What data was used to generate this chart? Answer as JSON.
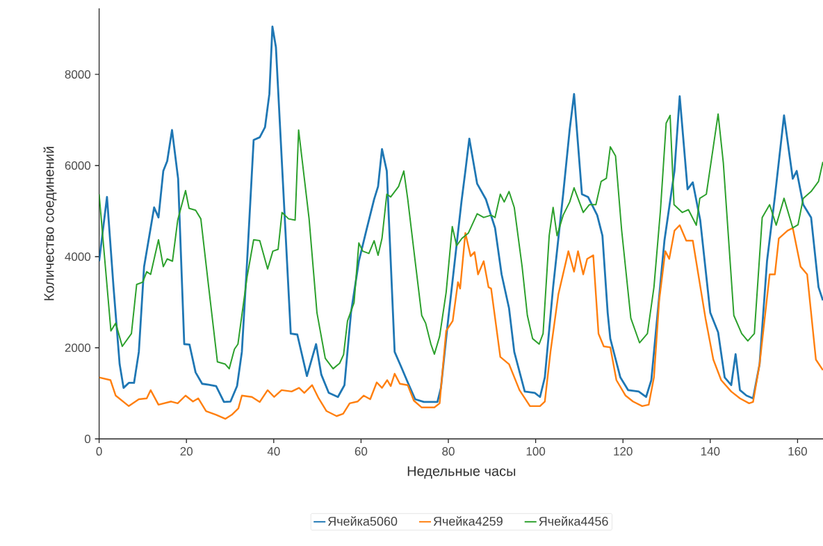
{
  "chart_data": {
    "type": "line",
    "xlabel": "Недельные часы",
    "ylabel": "Количество соединений",
    "xlim": [
      0,
      166
    ],
    "ylim": [
      0,
      9450
    ],
    "xticks": [
      0,
      20,
      40,
      60,
      80,
      100,
      120,
      140,
      160
    ],
    "yticks": [
      0,
      2000,
      4000,
      6000,
      8000
    ],
    "legend": "bottom",
    "marker": "none",
    "line_style": "solid",
    "series": [
      {
        "name": "Ячейка5060",
        "color": "#1f77b4",
        "x": [
          0,
          1.8,
          3.3,
          4.7,
          5.6,
          6.8,
          8,
          9.1,
          10.3,
          12.6,
          13.6,
          14.7,
          15.6,
          16.7,
          18.1,
          19.5,
          20.7,
          22.1,
          23.6,
          25.1,
          26.8,
          28.6,
          30.1,
          31.6,
          32.7,
          33.9,
          35.4,
          36.8,
          38,
          39,
          39.7,
          40.5,
          43.9,
          45.4,
          47.6,
          49.7,
          50.9,
          52.6,
          54.7,
          56.2,
          57.7,
          59.5,
          61.2,
          63,
          63.9,
          64.8,
          65.9,
          67.7,
          69.2,
          70.7,
          72.4,
          74.4,
          77.5,
          78.3,
          79.8,
          81.6,
          83,
          83.9,
          84.8,
          86.6,
          88.6,
          90.7,
          92.2,
          93.9,
          95.1,
          97.5,
          99.8,
          101,
          102.1,
          104,
          106.3,
          107.8,
          108.8,
          110.6,
          112,
          114.1,
          115.3,
          116.5,
          117.1,
          119.4,
          121.2,
          123.6,
          125.3,
          126.5,
          129.5,
          131.8,
          133,
          134.8,
          136,
          137.7,
          140,
          141.8,
          143.3,
          144.8,
          145.8,
          146.8,
          148.3,
          149.8,
          151.3,
          153,
          154.8,
          156.9,
          158.9,
          159.8,
          161.3,
          163.1,
          164.8,
          165.8
        ],
        "values": [
          3900,
          5310,
          3330,
          1640,
          1120,
          1230,
          1230,
          1910,
          3780,
          5080,
          4860,
          5880,
          6100,
          6780,
          5710,
          2080,
          2070,
          1460,
          1210,
          1190,
          1160,
          810,
          820,
          1160,
          1910,
          3900,
          6560,
          6620,
          6840,
          7570,
          9050,
          8600,
          2310,
          2290,
          1380,
          2080,
          1410,
          1010,
          920,
          1180,
          2770,
          3900,
          4570,
          5260,
          5540,
          6360,
          5880,
          1910,
          1580,
          1240,
          870,
          810,
          810,
          1120,
          2480,
          4010,
          5200,
          5880,
          6590,
          5600,
          5260,
          4630,
          3610,
          2870,
          1910,
          1040,
          1010,
          920,
          1350,
          3330,
          5370,
          6790,
          7570,
          5370,
          5310,
          4910,
          4460,
          2770,
          2200,
          1350,
          1070,
          1040,
          920,
          1290,
          4350,
          5880,
          7520,
          5480,
          5630,
          4800,
          2770,
          2340,
          1350,
          1180,
          1860,
          1070,
          950,
          890,
          1640,
          3900,
          5310,
          7100,
          5710,
          5880,
          5140,
          4860,
          3330,
          3040
        ]
      },
      {
        "name": "Ячейка4259",
        "color": "#ff7f0e",
        "x": [
          0,
          2.6,
          3.8,
          6.8,
          9.1,
          10.9,
          11.8,
          13.6,
          16.5,
          18,
          19.8,
          21.5,
          22.7,
          24.5,
          26.8,
          28.9,
          30.4,
          31.9,
          32.7,
          35,
          36.8,
          38.6,
          40.1,
          41.8,
          44.1,
          45.8,
          47,
          48.8,
          50.3,
          52.1,
          54.4,
          55.9,
          57.4,
          59.2,
          60.6,
          62.1,
          63.6,
          64.8,
          66,
          66.8,
          67.7,
          68.9,
          70.7,
          72.1,
          73.9,
          76.8,
          78,
          79.5,
          81,
          82.2,
          82.7,
          83.9,
          85.1,
          86,
          86.8,
          88.1,
          89.2,
          89.8,
          91.9,
          93.9,
          96.3,
          98.7,
          101,
          102.1,
          103.4,
          105.2,
          107.5,
          108.8,
          109.7,
          110.9,
          111.8,
          113.2,
          114.4,
          115.6,
          117.1,
          118.5,
          120.6,
          122.3,
          124.4,
          125.9,
          127.1,
          128.3,
          129.7,
          130.6,
          131.8,
          133,
          134.5,
          136,
          138.9,
          140.7,
          142.5,
          144.8,
          146.8,
          148.9,
          149.8,
          151.3,
          153.6,
          154.8,
          155.7,
          157.7,
          158.9,
          160.7,
          162.2,
          164.2,
          165.8
        ],
        "values": [
          1350,
          1290,
          950,
          720,
          870,
          890,
          1070,
          750,
          820,
          780,
          950,
          820,
          890,
          610,
          530,
          440,
          530,
          670,
          950,
          920,
          810,
          1070,
          920,
          1070,
          1040,
          1120,
          1010,
          1180,
          890,
          610,
          500,
          550,
          780,
          820,
          950,
          870,
          1240,
          1120,
          1290,
          1160,
          1430,
          1210,
          1180,
          840,
          690,
          690,
          780,
          2370,
          2590,
          3440,
          3300,
          4520,
          4010,
          4100,
          3610,
          3900,
          3330,
          3300,
          1800,
          1640,
          1070,
          720,
          720,
          820,
          1910,
          3170,
          4120,
          3670,
          4120,
          3610,
          3950,
          4030,
          2310,
          2030,
          2010,
          1290,
          950,
          820,
          720,
          750,
          1350,
          3040,
          4120,
          3950,
          4570,
          4690,
          4350,
          4350,
          2650,
          1740,
          1290,
          1040,
          890,
          780,
          810,
          1640,
          3610,
          3610,
          4400,
          4570,
          4630,
          3780,
          3610,
          1740,
          1510
        ]
      },
      {
        "name": "Ячейка4456",
        "color": "#2ca02c",
        "x": [
          0,
          2.7,
          3.8,
          5.3,
          7.4,
          8.6,
          10,
          10.9,
          11.8,
          13.6,
          14.7,
          15.6,
          16.8,
          18,
          19.8,
          20.6,
          22.1,
          23.3,
          25.1,
          27.1,
          28.9,
          29.8,
          31,
          31.8,
          33.9,
          35.4,
          36.8,
          38.6,
          39.8,
          41,
          41.9,
          43.4,
          44.9,
          45.7,
          48.1,
          49.9,
          51.8,
          53.6,
          55.1,
          56,
          56.9,
          58.4,
          59.5,
          60.4,
          61.8,
          63,
          63.9,
          64.8,
          65.9,
          66.8,
          68.6,
          69.8,
          70.7,
          72.4,
          73.9,
          74.8,
          76,
          76.8,
          78,
          79.5,
          80.9,
          81.9,
          83.1,
          84.6,
          86.6,
          88.1,
          89.8,
          90.7,
          91.9,
          92.8,
          93.9,
          95.1,
          96.9,
          98.1,
          99.3,
          100.8,
          101.7,
          103.1,
          104,
          104.9,
          106.3,
          107.8,
          108.8,
          110.9,
          112.3,
          113.8,
          115,
          116.2,
          117.1,
          118.3,
          119.7,
          121.8,
          123.8,
          125.6,
          127.1,
          128.6,
          129.9,
          130.8,
          131.7,
          133.6,
          135,
          136.8,
          137.6,
          139.1,
          141.8,
          143,
          145.4,
          147.2,
          148.6,
          150.1,
          151.9,
          153.6,
          155.1,
          156.9,
          158.9,
          160.1,
          161.3,
          163.1,
          164.8,
          165.8
        ],
        "values": [
          5370,
          2370,
          2540,
          2030,
          2310,
          3390,
          3440,
          3670,
          3610,
          4370,
          3780,
          3950,
          3900,
          4800,
          5450,
          5060,
          5020,
          4830,
          3330,
          1690,
          1640,
          1540,
          1970,
          2080,
          3560,
          4370,
          4350,
          3730,
          4120,
          4160,
          4970,
          4830,
          4800,
          6780,
          4830,
          2770,
          1770,
          1540,
          1660,
          1850,
          2590,
          2990,
          4300,
          4120,
          4070,
          4350,
          4030,
          4400,
          5370,
          5310,
          5540,
          5880,
          5260,
          3900,
          2710,
          2540,
          2080,
          1860,
          2250,
          3220,
          4660,
          4240,
          4400,
          4520,
          4940,
          4860,
          4910,
          4860,
          5370,
          5200,
          5430,
          5080,
          3780,
          2710,
          2200,
          2080,
          2310,
          4460,
          5080,
          4460,
          4910,
          5200,
          5510,
          4970,
          5140,
          5140,
          5650,
          5720,
          6410,
          6210,
          4580,
          2650,
          2110,
          2310,
          3330,
          5030,
          6930,
          7100,
          5140,
          4970,
          5030,
          4690,
          5280,
          5370,
          7130,
          6050,
          2710,
          2310,
          2150,
          2310,
          4860,
          5140,
          4690,
          5280,
          4630,
          4700,
          5280,
          5430,
          5650,
          6080
        ]
      }
    ]
  }
}
